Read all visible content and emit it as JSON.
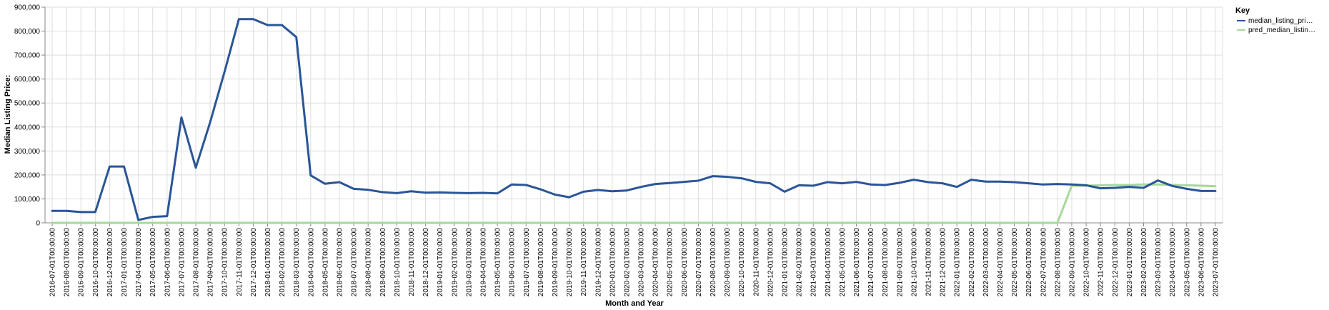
{
  "chart_data": {
    "type": "line",
    "xlabel": "Month and Year",
    "ylabel": "Median Listing Price:",
    "ylim": [
      0,
      900000
    ],
    "yticks": [
      "0",
      "100,000",
      "200,000",
      "300,000",
      "400,000",
      "500,000",
      "600,000",
      "700,000",
      "800,000",
      "900,000"
    ],
    "legend_title": "Key",
    "legend_position": "right",
    "grid": true,
    "x": [
      "2016-07-01T00:00:00",
      "2016-08-01T00:00:00",
      "2016-09-01T00:00:00",
      "2016-10-01T00:00:00",
      "2016-12-01T00:00:00",
      "2017-01-01T00:00:00",
      "2017-04-01T00:00:00",
      "2017-05-01T00:00:00",
      "2017-06-01T00:00:00",
      "2017-07-01T00:00:00",
      "2017-08-01T00:00:00",
      "2017-09-01T00:00:00",
      "2017-10-01T00:00:00",
      "2017-11-01T00:00:00",
      "2017-12-01T00:00:00",
      "2018-01-01T00:00:00",
      "2018-02-01T00:00:00",
      "2018-03-01T00:00:00",
      "2018-04-01T00:00:00",
      "2018-05-01T00:00:00",
      "2018-06-01T00:00:00",
      "2018-07-01T00:00:00",
      "2018-08-01T00:00:00",
      "2018-09-01T00:00:00",
      "2018-10-01T00:00:00",
      "2018-11-01T00:00:00",
      "2018-12-01T00:00:00",
      "2019-01-01T00:00:00",
      "2019-02-01T00:00:00",
      "2019-03-01T00:00:00",
      "2019-04-01T00:00:00",
      "2019-05-01T00:00:00",
      "2019-06-01T00:00:00",
      "2019-07-01T00:00:00",
      "2019-08-01T00:00:00",
      "2019-09-01T00:00:00",
      "2019-10-01T00:00:00",
      "2019-11-01T00:00:00",
      "2019-12-01T00:00:00",
      "2020-01-01T00:00:00",
      "2020-02-01T00:00:00",
      "2020-03-01T00:00:00",
      "2020-04-01T00:00:00",
      "2020-05-01T00:00:00",
      "2020-06-01T00:00:00",
      "2020-07-01T00:00:00",
      "2020-08-01T00:00:00",
      "2020-09-01T00:00:00",
      "2020-10-01T00:00:00",
      "2020-11-01T00:00:00",
      "2020-12-01T00:00:00",
      "2021-01-01T00:00:00",
      "2021-02-01T00:00:00",
      "2021-03-01T00:00:00",
      "2021-04-01T00:00:00",
      "2021-05-01T00:00:00",
      "2021-06-01T00:00:00",
      "2021-07-01T00:00:00",
      "2021-08-01T00:00:00",
      "2021-09-01T00:00:00",
      "2021-10-01T00:00:00",
      "2021-11-01T00:00:00",
      "2021-12-01T00:00:00",
      "2022-01-01T00:00:00",
      "2022-02-01T00:00:00",
      "2022-03-01T00:00:00",
      "2022-04-01T00:00:00",
      "2022-05-01T00:00:00",
      "2022-06-01T00:00:00",
      "2022-07-01T00:00:00",
      "2022-08-01T00:00:00",
      "2022-09-01T00:00:00",
      "2022-10-01T00:00:00",
      "2022-11-01T00:00:00",
      "2022-12-01T00:00:00",
      "2023-01-01T00:00:00",
      "2023-02-01T00:00:00",
      "2023-03-01T00:00:00",
      "2023-04-01T00:00:00",
      "2023-05-01T00:00:00",
      "2023-06-01T00:00:00",
      "2023-07-01T00:00:00"
    ],
    "series": [
      {
        "name": "median_listing_pri…",
        "color": "#2a5597",
        "values": [
          50000,
          50000,
          45000,
          45000,
          235000,
          235000,
          12000,
          25000,
          28000,
          440000,
          230000,
          420000,
          630000,
          850000,
          850000,
          825000,
          825000,
          775000,
          198000,
          163000,
          170000,
          142000,
          138000,
          128000,
          124000,
          132000,
          126000,
          127000,
          125000,
          124000,
          125000,
          123000,
          160000,
          158000,
          140000,
          118000,
          107000,
          130000,
          137000,
          132000,
          135000,
          150000,
          162000,
          166000,
          171000,
          176000,
          195000,
          192000,
          186000,
          171000,
          165000,
          130000,
          157000,
          155000,
          170000,
          165000,
          171000,
          160000,
          158000,
          167000,
          180000,
          170000,
          165000,
          150000,
          180000,
          172000,
          172000,
          170000,
          165000,
          160000,
          162000,
          160000,
          157000,
          144000,
          146000,
          150000,
          146000,
          177000,
          154000,
          142000,
          133000,
          133000
        ]
      },
      {
        "name": "pred_median_listin…",
        "color": "#a6d89c",
        "values": [
          0,
          0,
          0,
          0,
          0,
          0,
          0,
          0,
          0,
          0,
          0,
          0,
          0,
          0,
          0,
          0,
          0,
          0,
          0,
          0,
          0,
          0,
          0,
          0,
          0,
          0,
          0,
          0,
          0,
          0,
          0,
          0,
          0,
          0,
          0,
          0,
          0,
          0,
          0,
          0,
          0,
          0,
          0,
          0,
          0,
          0,
          0,
          0,
          0,
          0,
          0,
          0,
          0,
          0,
          0,
          0,
          0,
          0,
          0,
          0,
          0,
          0,
          0,
          0,
          0,
          0,
          0,
          0,
          0,
          0,
          0,
          155000,
          155000,
          157000,
          158000,
          158000,
          160000,
          160000,
          158000,
          157000,
          155000,
          153000
        ]
      }
    ]
  }
}
